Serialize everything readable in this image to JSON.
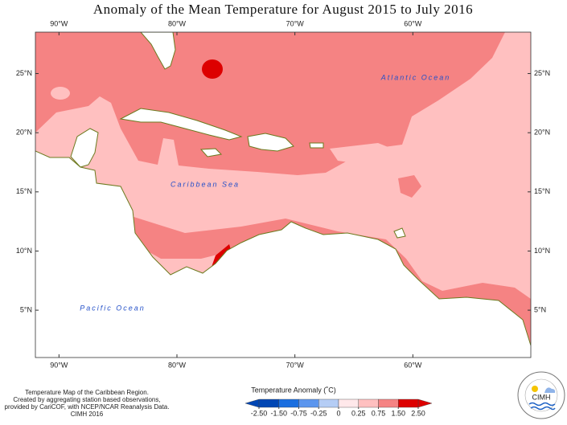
{
  "title": "Anomaly of the Mean Temperature for August 2015 to July 2016",
  "map": {
    "xlim": [
      -92,
      -50
    ],
    "ylim": [
      1,
      28.5
    ],
    "xticks": [
      {
        "value": -90,
        "label": "90°W"
      },
      {
        "value": -80,
        "label": "80°W"
      },
      {
        "value": -70,
        "label": "70°W"
      },
      {
        "value": -60,
        "label": "60°W"
      }
    ],
    "yticks": [
      {
        "value": 5,
        "label": "5°N"
      },
      {
        "value": 10,
        "label": "10°N"
      },
      {
        "value": 15,
        "label": "15°N"
      },
      {
        "value": 20,
        "label": "20°N"
      },
      {
        "value": 25,
        "label": "25°N"
      }
    ],
    "labels": [
      "Atlantic Ocean",
      "Caribbean Sea",
      "Pacific Ocean"
    ]
  },
  "legend": {
    "title": "Temperature Anomaly (˚C)",
    "ticks": [
      {
        "value": -2.5,
        "label": "-2.50"
      },
      {
        "value": -1.5,
        "label": "-1.50"
      },
      -0.75,
      -0.25,
      0,
      0.25,
      0.75,
      {
        "value": 1.5,
        "label": "1.50"
      },
      {
        "value": 2.5,
        "label": "2.50"
      }
    ],
    "colors": [
      "#0046b4",
      "#1a6fe0",
      "#5c96ee",
      "#b5cdf5",
      "#ffe8ea",
      "#ffc0c0",
      "#f58383",
      "#dd0000"
    ]
  },
  "footer": [
    "Temperature Map of the Caribbean Region.",
    "Created by aggregating station based observations,",
    "provided by CariCOF, with NCEP/NCAR Reanalysis Data.",
    "CIMH 2016"
  ],
  "logo": "CIMH"
}
